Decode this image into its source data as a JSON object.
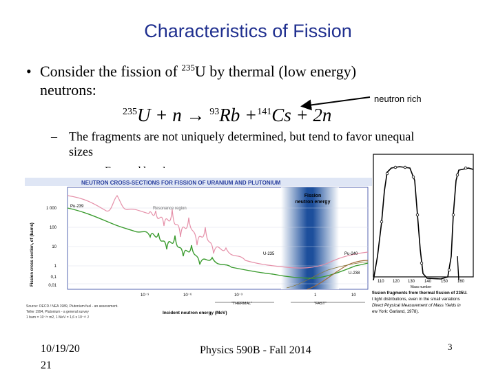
{
  "slide": {
    "title": "Characteristics of Fission",
    "bullet_pre": "Consider the fission of ",
    "bullet_sup": "235",
    "bullet_mid": "U by thermal (low energy)",
    "bullet_line2": "neutrons:",
    "annotation": "neutron rich",
    "equation": {
      "m1": "235",
      "t1": "U + n",
      "m2": "93",
      "t2": "Rb +",
      "m3": "141",
      "t3": "Cs + 2n"
    },
    "sub_bullet_1": "The fragments are not uniquely determined, but tend to favor unequal sizes",
    "sub_bullet_2": "Favored by phase space"
  },
  "cross_section_figure": {
    "title": "NEUTRON CROSS-SECTIONS FOR FISSION OF URANIUM AND PLUTONIUM",
    "resonance_label": "Resonance region",
    "band_label_1": "Fission",
    "band_label_2": "neutron energy",
    "ylabel": "Fission cross section, σf (barns)",
    "xlabel": "Incident neutron energy (MeV)",
    "y_ticks": [
      "1 000",
      "100",
      "10",
      "1",
      "0,1",
      "0,01"
    ],
    "x_ticks": [
      "10⁻⁹",
      "10⁻⁶",
      "10⁻³",
      "1",
      "10"
    ],
    "thermal_label": "\"THERMAL\"",
    "fast_label": "\"FAST\"",
    "series_labels": {
      "pu239": "Pu-239",
      "u235": "U-235",
      "pu240": "Pu-240",
      "u238": "U-238"
    },
    "source_1": "Source: OECD / NEA 1989, Plutonium fuel - an assessment.",
    "source_2": "Teller 1994, Plutonium - a general survey",
    "source_3": "1 barn = 10⁻²⁸ m2, 1 MeV = 1,6 x 10⁻¹³ J",
    "colors": {
      "title": "#2a3f9e",
      "pu239": "#e58fa8",
      "u235": "#3a9b2e",
      "u238": "#a06a3a",
      "band": "#1d4f9c"
    }
  },
  "mass_yield_figure": {
    "x_label": "Mass number",
    "x_ticks": [
      "110",
      "120",
      "130",
      "140",
      "150",
      "160"
    ],
    "caption_1": "fission fragments from thermal fission of 235U.",
    "caption_2": "t light distributions, even in the small variations",
    "caption_3": "Direct Physical Measurement of Mass Yields in",
    "caption_4": "ew York: Garland, 1978)."
  },
  "footer": {
    "date_line1": "10/19/20",
    "date_line2": "21",
    "course": "Physics 590B - Fall 2014",
    "page": "3"
  }
}
